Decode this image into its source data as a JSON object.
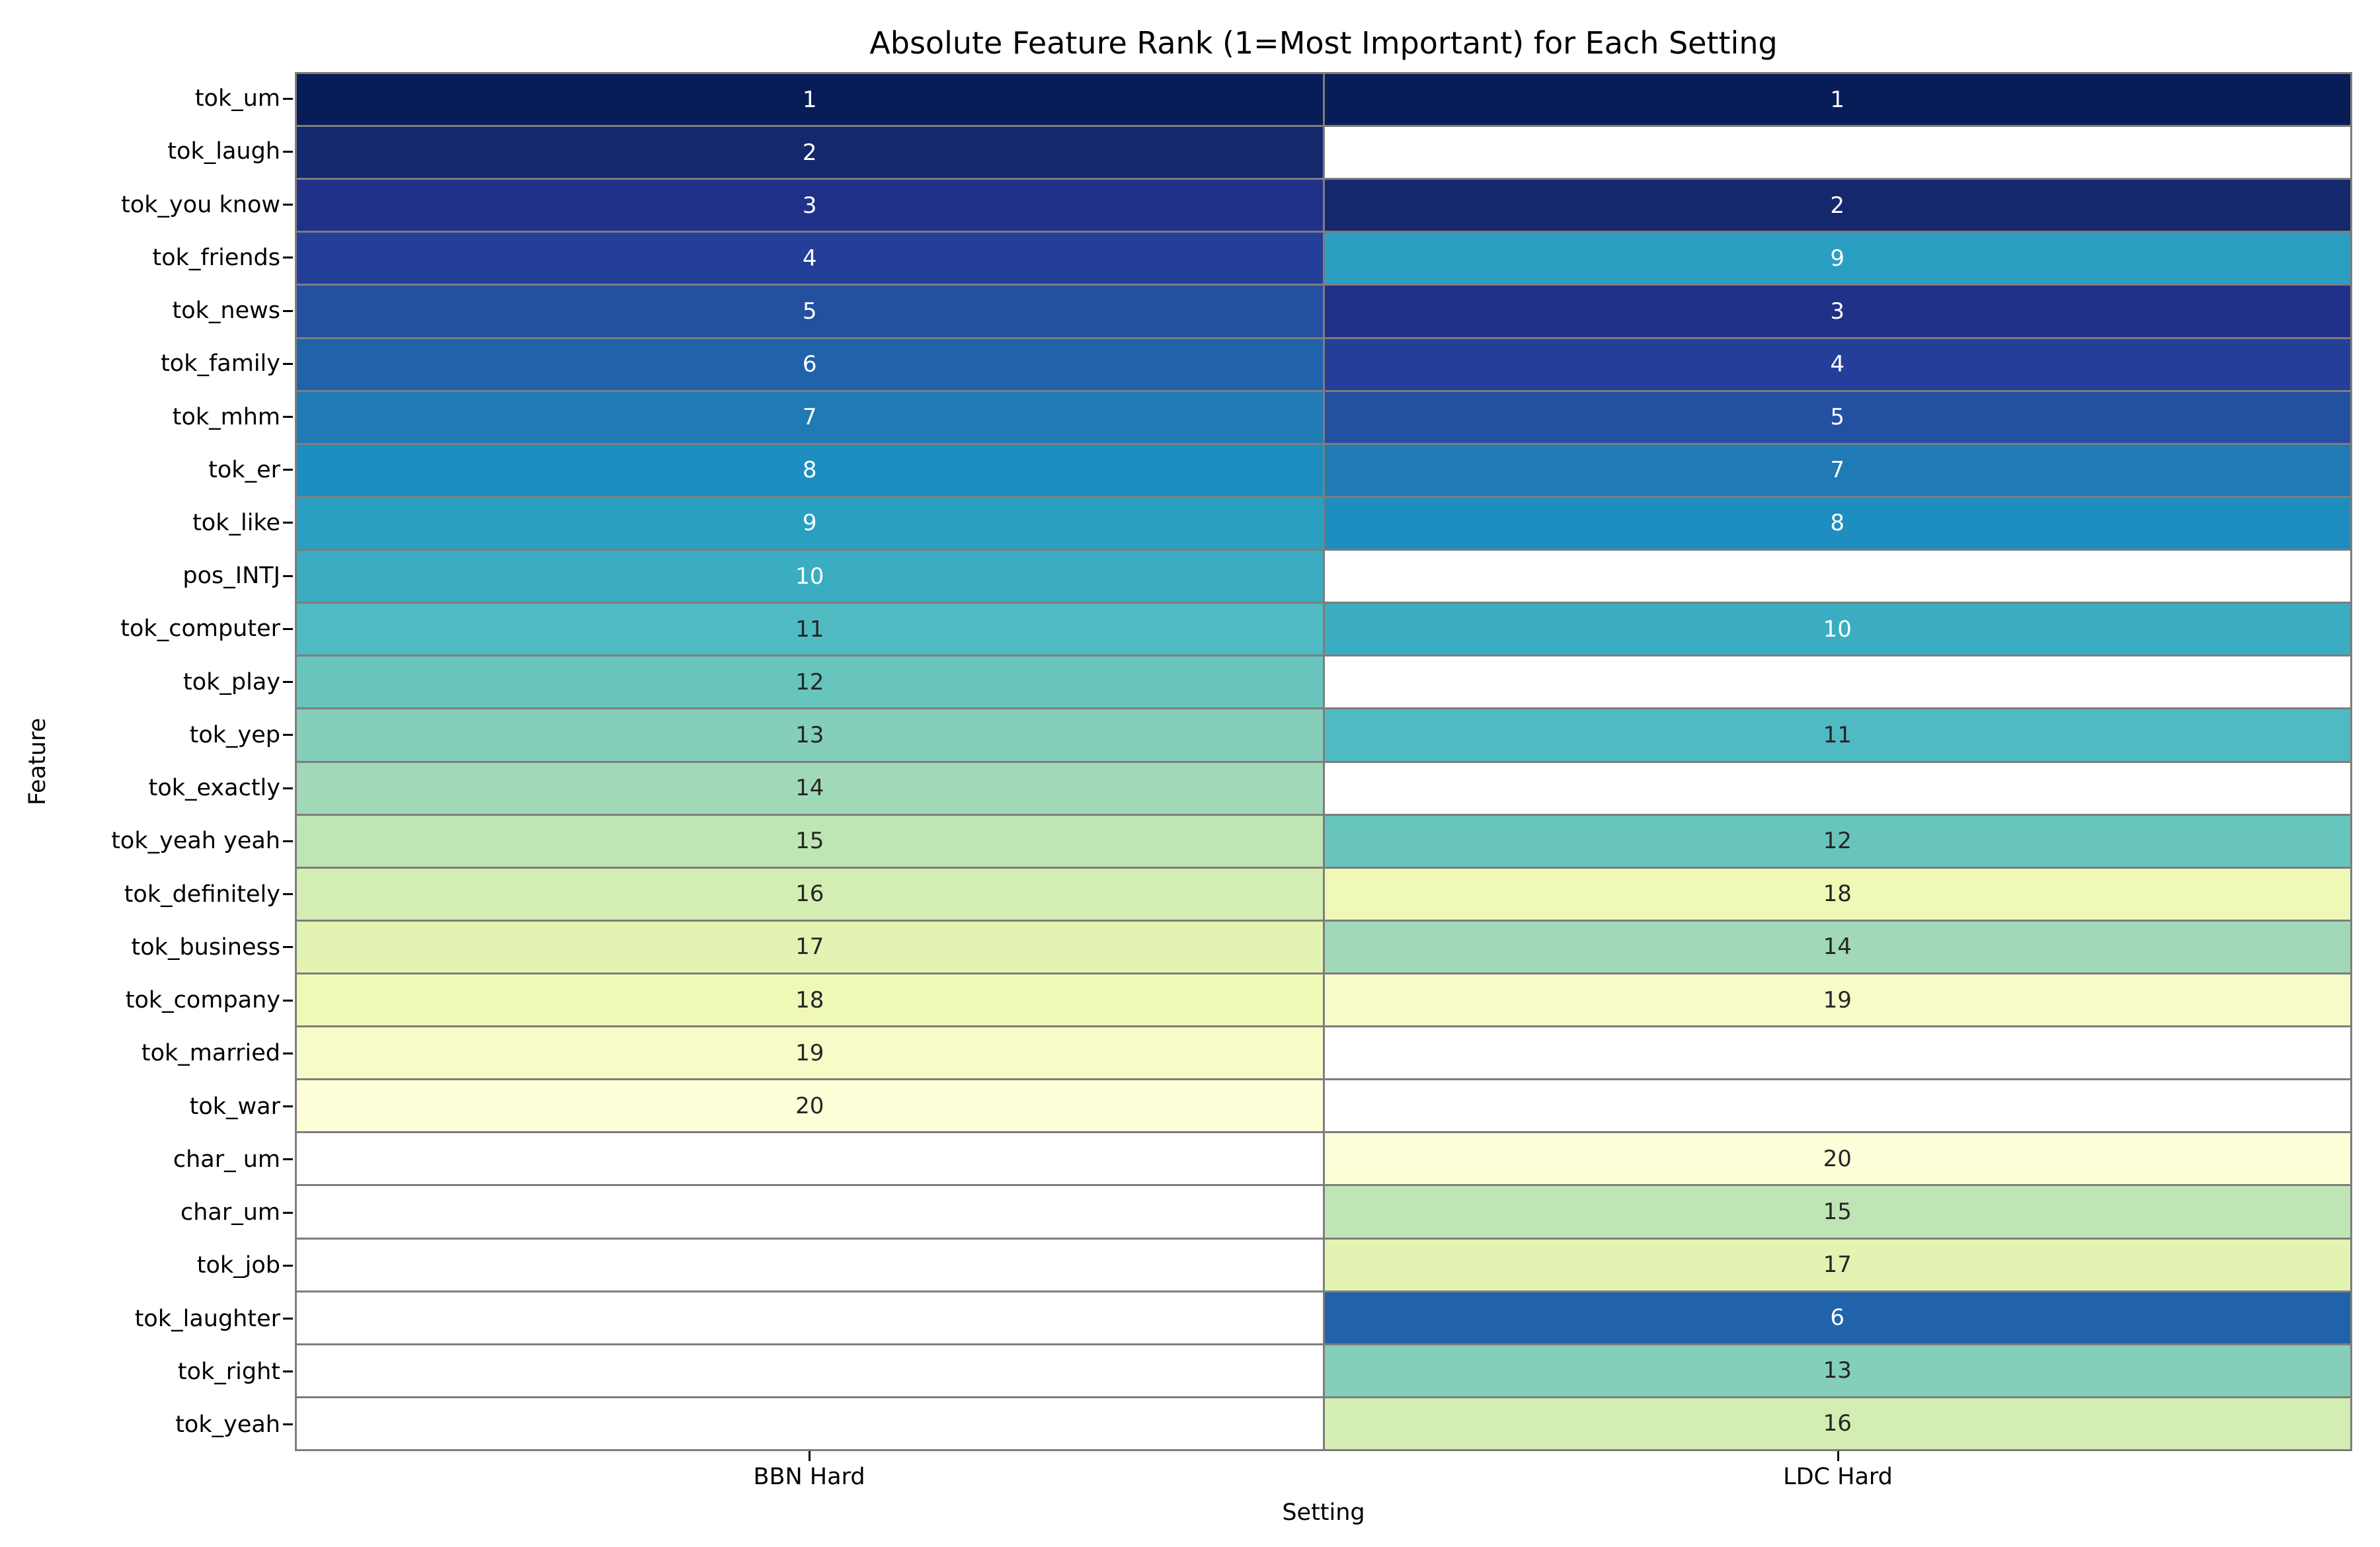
{
  "chart_data": {
    "type": "heatmap",
    "title": "Absolute Feature Rank (1=Most Important) for Each Setting",
    "xlabel": "Setting",
    "ylabel": "Feature",
    "columns": [
      "BBN Hard",
      "LDC Hard"
    ],
    "rows": [
      "tok_um",
      "tok_laugh",
      "tok_you know",
      "tok_friends",
      "tok_news",
      "tok_family",
      "tok_mhm",
      "tok_er",
      "tok_like",
      "pos_INTJ",
      "tok_computer",
      "tok_play",
      "tok_yep",
      "tok_exactly",
      "tok_yeah yeah",
      "tok_definitely",
      "tok_business",
      "tok_company",
      "tok_married",
      "tok_war",
      "char_ um",
      "char_um",
      "tok_job",
      "tok_laughter",
      "tok_right",
      "tok_yeah"
    ],
    "values": [
      [
        1,
        1
      ],
      [
        2,
        null
      ],
      [
        3,
        2
      ],
      [
        4,
        9
      ],
      [
        5,
        3
      ],
      [
        6,
        4
      ],
      [
        7,
        5
      ],
      [
        8,
        7
      ],
      [
        9,
        8
      ],
      [
        10,
        null
      ],
      [
        11,
        10
      ],
      [
        12,
        null
      ],
      [
        13,
        11
      ],
      [
        14,
        null
      ],
      [
        15,
        12
      ],
      [
        16,
        18
      ],
      [
        17,
        14
      ],
      [
        18,
        19
      ],
      [
        19,
        null
      ],
      [
        20,
        null
      ],
      [
        null,
        20
      ],
      [
        null,
        15
      ],
      [
        null,
        17
      ],
      [
        null,
        6
      ],
      [
        null,
        13
      ],
      [
        null,
        16
      ]
    ],
    "value_range": [
      1,
      20
    ],
    "colormap": "YlGnBu reversed (rank 1 = darkest blue, rank 20 = lightest yellow)",
    "rank_colors": {
      "1": "#081d58",
      "2": "#15286e",
      "3": "#203189",
      "4": "#243f99",
      "5": "#2450a1",
      "6": "#2163ab",
      "7": "#1f7ab5",
      "8": "#1e8dbf",
      "9": "#2a9fc1",
      "10": "#3aadc3",
      "11": "#4fbac2",
      "12": "#68c5be",
      "13": "#84ceba",
      "14": "#a1d9b8",
      "15": "#bfe5b5",
      "16": "#d4edb3",
      "17": "#e3f3b2",
      "18": "#f0f8b6",
      "19": "#f7fbc7",
      "20": "#feffd8"
    },
    "empty_cell_color": "#ffffff",
    "grid_line_color": "#7d7d7d",
    "annotation_colors": {
      "light": "#ffffff",
      "dark": "#262626"
    },
    "white_text_max_rank": 10,
    "legend": "none",
    "grid": "on"
  }
}
